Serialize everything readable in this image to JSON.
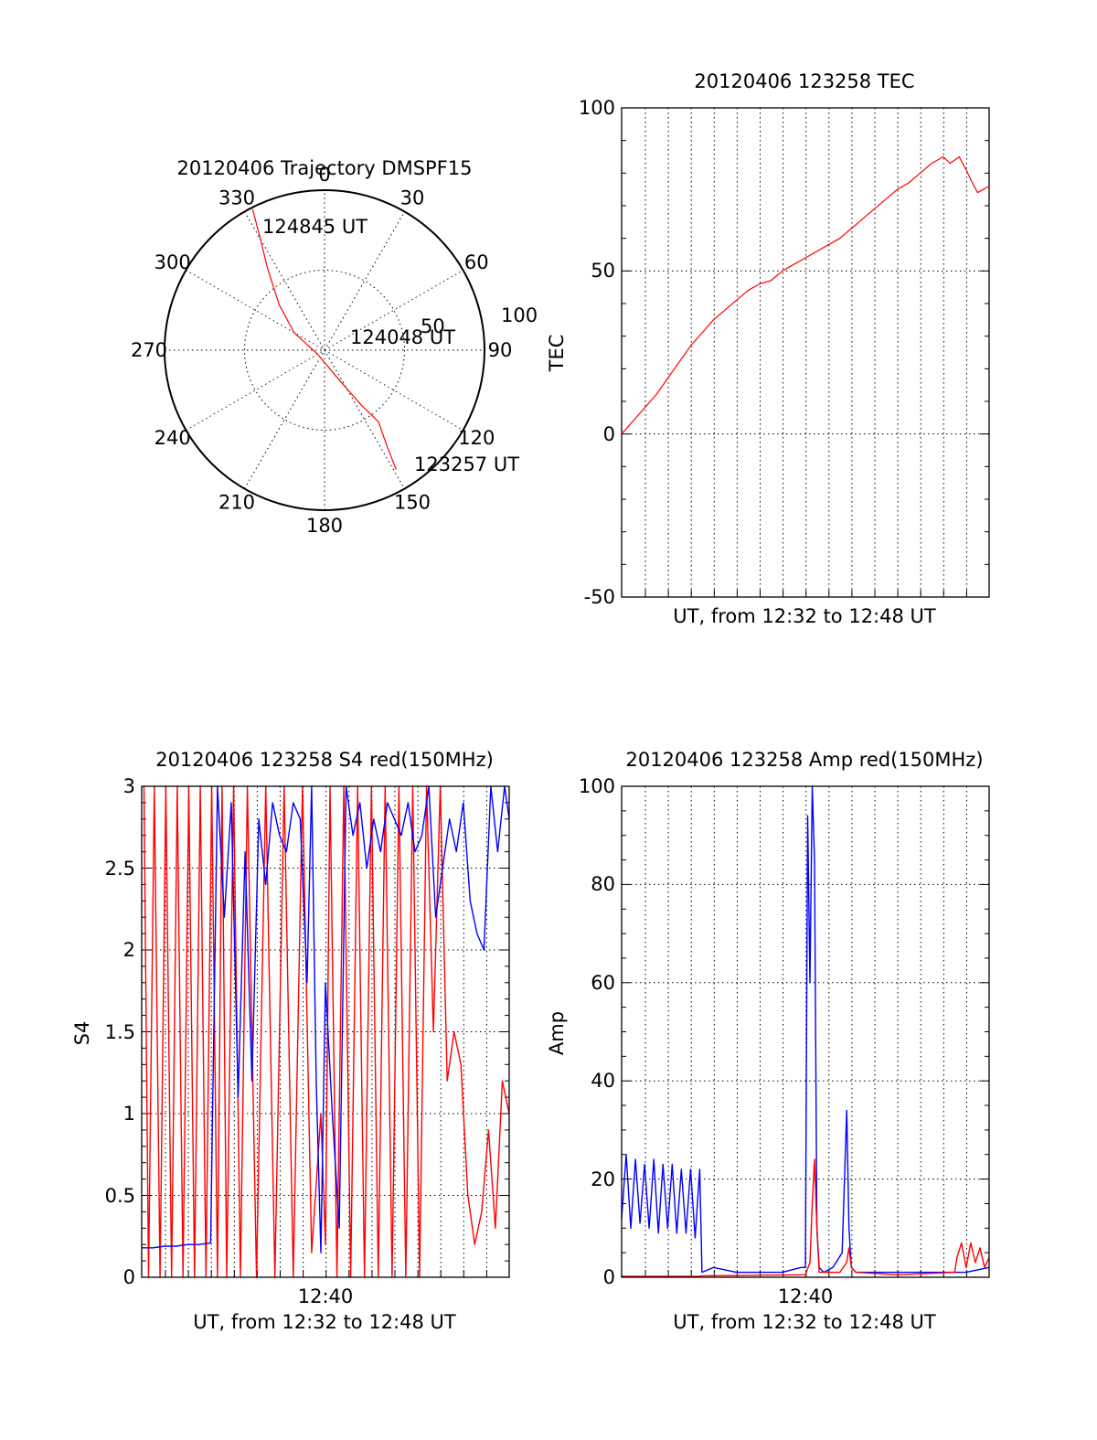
{
  "colors": {
    "primary_series": "#ff0000",
    "secondary_series": "#0000ff",
    "axes": "#000000",
    "background": "#ffffff"
  },
  "chart_data": [
    {
      "id": "trajectory",
      "type": "scatter",
      "projection": "polar",
      "title": "20120406 Trajectory DMSPF15",
      "azimuth_labels": [
        "0",
        "30",
        "60",
        "90",
        "120",
        "150",
        "180",
        "210",
        "240",
        "270",
        "300",
        "330"
      ],
      "radial_labels": [
        "50",
        "100"
      ],
      "radial_range": [
        0,
        100
      ],
      "grid": true,
      "series": [
        {
          "color": "#ff0000",
          "points": [
            {
              "az": 333,
              "r": 99
            },
            {
              "az": 330,
              "r": 80
            },
            {
              "az": 325,
              "r": 62
            },
            {
              "az": 315,
              "r": 40
            },
            {
              "az": 300,
              "r": 22
            },
            {
              "az": 240,
              "r": 5
            },
            {
              "az": 153,
              "r": 22
            },
            {
              "az": 146,
              "r": 42
            },
            {
              "az": 143,
              "r": 56
            },
            {
              "az": 147,
              "r": 72
            },
            {
              "az": 149,
              "r": 87
            }
          ]
        }
      ],
      "annotations": [
        {
          "text": "124845 UT",
          "az": 333,
          "r": 99
        },
        {
          "text": "124048 UT",
          "az": 300,
          "r": 22
        },
        {
          "text": "123257 UT",
          "az": 149,
          "r": 87
        }
      ]
    },
    {
      "id": "tec",
      "type": "line",
      "title": "20120406 123258 TEC",
      "xlabel": "UT, from 12:32 to 12:48 UT",
      "ylabel": "TEC",
      "xlim": [
        0,
        16
      ],
      "ylim": [
        -50,
        100
      ],
      "yticks": [
        "-50",
        "0",
        "50",
        "100"
      ],
      "grid": true,
      "series": [
        {
          "color": "#ff0000",
          "x": [
            0,
            0.5,
            1,
            1.5,
            2,
            2.5,
            3,
            3.5,
            4,
            4.5,
            5,
            5.5,
            6,
            6.5,
            7,
            7.5,
            8,
            8.5,
            9,
            9.5,
            10,
            10.5,
            11,
            11.5,
            12,
            12.5,
            13,
            13.5,
            14,
            14.3,
            14.7,
            15,
            15.2,
            15.5,
            16
          ],
          "y": [
            0,
            4,
            8,
            12,
            17,
            22,
            27,
            31,
            35,
            38,
            41,
            44,
            46,
            47,
            50,
            52,
            54,
            56,
            58,
            60,
            63,
            66,
            69,
            72,
            75,
            77,
            80,
            83,
            85,
            83,
            85,
            81,
            78,
            74,
            76
          ]
        }
      ]
    },
    {
      "id": "s4",
      "type": "line",
      "title": "20120406 123258 S4 red(150MHz)",
      "xlabel": "UT, from 12:32 to 12:48 UT",
      "ylabel": "S4",
      "xticks": [
        "12:40"
      ],
      "xlim": [
        0,
        16
      ],
      "ylim": [
        0,
        3
      ],
      "yticks": [
        "0",
        "0.5",
        "1",
        "1.5",
        "2",
        "2.5",
        "3"
      ],
      "grid": true,
      "series": [
        {
          "color": "#ff0000",
          "x": [
            0.1,
            0.3,
            0.55,
            0.8,
            1.05,
            1.3,
            1.55,
            1.8,
            2.05,
            2.3,
            2.55,
            2.8,
            3.05,
            3.3,
            3.5,
            3.7,
            4.0,
            4.3,
            4.6,
            5.0,
            5.4,
            5.8,
            6.2,
            6.6,
            7.0,
            7.4,
            7.8,
            8.0,
            8.2,
            8.5,
            8.8,
            9.1,
            9.4,
            9.7,
            10.0,
            10.3,
            10.6,
            10.9,
            11.2,
            11.5,
            11.8,
            12.1,
            12.4,
            12.7,
            13.0,
            13.3,
            13.6,
            13.9,
            14.2,
            14.5,
            14.8,
            15.1,
            15.4,
            15.7,
            16.0
          ],
          "y": [
            3,
            0,
            3,
            0,
            3,
            0,
            3,
            0,
            3,
            0,
            3,
            0,
            3,
            0,
            3,
            0,
            3,
            0,
            3,
            0,
            3,
            0,
            3,
            0,
            3,
            0.15,
            1.0,
            0.2,
            3,
            0,
            3,
            0,
            3,
            0,
            3,
            0,
            3,
            0,
            3,
            0,
            3,
            0,
            3,
            1.5,
            3,
            1.2,
            1.5,
            1.3,
            0.5,
            0.2,
            0.4,
            0.9,
            0.3,
            1.2,
            1.0
          ]
        },
        {
          "color": "#0000ff",
          "x": [
            0,
            0.5,
            1,
            1.5,
            2,
            2.5,
            3,
            3.3,
            3.6,
            3.9,
            4.2,
            4.5,
            4.8,
            5.1,
            5.4,
            5.7,
            6.0,
            6.3,
            6.6,
            6.9,
            7.2,
            7.4,
            7.6,
            7.8,
            8.0,
            8.3,
            8.6,
            8.9,
            9.2,
            9.5,
            9.8,
            10.1,
            10.4,
            10.7,
            11.0,
            11.3,
            11.6,
            11.9,
            12.2,
            12.5,
            12.8,
            13.1,
            13.4,
            13.7,
            14.0,
            14.3,
            14.6,
            14.9,
            15.2,
            15.5,
            15.8,
            16.0
          ],
          "y": [
            0.18,
            0.18,
            0.19,
            0.19,
            0.2,
            0.2,
            0.21,
            3,
            2.2,
            2.9,
            1.1,
            2.6,
            1.2,
            2.8,
            2.4,
            2.9,
            2.7,
            2.6,
            2.9,
            2.8,
            1.8,
            3,
            1.2,
            0.15,
            1.8,
            1.0,
            0.3,
            3,
            2.7,
            2.9,
            2.5,
            2.8,
            2.6,
            2.9,
            2.8,
            2.7,
            2.9,
            2.6,
            2.7,
            3,
            2.2,
            2.5,
            2.8,
            2.6,
            2.9,
            2.3,
            2.1,
            2.0,
            3,
            2.6,
            3,
            2.8
          ]
        }
      ]
    },
    {
      "id": "amp",
      "type": "line",
      "title": "20120406 123258 Amp red(150MHz)",
      "xlabel": "UT, from 12:32 to 12:48 UT",
      "ylabel": "Amp",
      "xticks": [
        "12:40"
      ],
      "xlim": [
        0,
        16
      ],
      "ylim": [
        0,
        100
      ],
      "yticks": [
        "0",
        "20",
        "40",
        "60",
        "80",
        "100"
      ],
      "grid": true,
      "series": [
        {
          "color": "#0000ff",
          "x": [
            0,
            0.2,
            0.4,
            0.6,
            0.8,
            1.0,
            1.2,
            1.4,
            1.6,
            1.8,
            2.0,
            2.2,
            2.4,
            2.6,
            2.8,
            3.0,
            3.2,
            3.4,
            3.5,
            4.0,
            5.0,
            6.0,
            7.0,
            7.8,
            8.0,
            8.1,
            8.2,
            8.3,
            8.4,
            8.5,
            8.6,
            8.8,
            9.2,
            9.6,
            9.8,
            9.9,
            10.0,
            10.2,
            11.0,
            12.0,
            13.0,
            14.0,
            15.0,
            16.0
          ],
          "y": [
            12,
            25,
            10,
            24,
            11,
            23,
            10,
            24,
            9,
            23,
            10,
            23,
            9,
            22,
            9,
            22,
            8,
            22,
            1,
            2,
            1,
            1,
            1,
            2,
            2,
            94,
            60,
            100,
            85,
            10,
            2,
            1,
            2,
            5,
            34,
            10,
            2,
            1,
            1,
            1,
            1,
            1,
            1,
            2
          ]
        },
        {
          "color": "#ff0000",
          "x": [
            0,
            3.4,
            3.5,
            8.0,
            8.2,
            8.3,
            8.4,
            8.5,
            8.6,
            9.5,
            9.8,
            9.9,
            10.0,
            10.2,
            12.0,
            14.5,
            14.6,
            14.8,
            15.0,
            15.2,
            15.4,
            15.6,
            15.8,
            16.0
          ],
          "y": [
            0.2,
            0.2,
            0.3,
            0.5,
            3,
            15,
            24,
            10,
            1,
            1,
            3,
            6,
            2,
            1,
            0.5,
            1,
            4,
            7,
            2,
            7,
            3,
            6,
            2,
            4
          ]
        }
      ]
    }
  ]
}
